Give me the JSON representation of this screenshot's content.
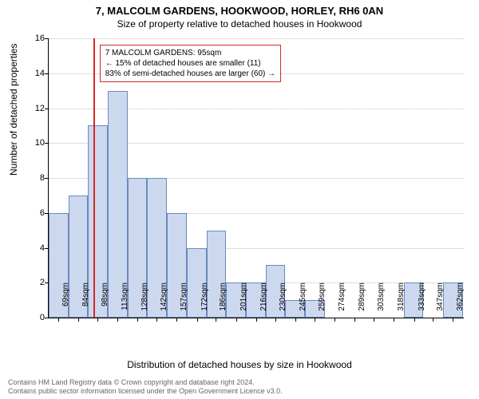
{
  "title": "7, MALCOLM GARDENS, HOOKWOOD, HORLEY, RH6 0AN",
  "subtitle": "Size of property relative to detached houses in Hookwood",
  "y_axis_label": "Number of detached properties",
  "x_axis_label": "Distribution of detached houses by size in Hookwood",
  "footer_line1": "Contains HM Land Registry data © Crown copyright and database right 2024.",
  "footer_line2": "Contains public sector information licensed under the Open Government Licence v3.0.",
  "chart": {
    "type": "histogram",
    "ylim": [
      0,
      16
    ],
    "ytick_step": 2,
    "yticks": [
      0,
      2,
      4,
      6,
      8,
      10,
      12,
      14,
      16
    ],
    "bar_fill": "#ccd8ed",
    "bar_stroke": "#6a8abf",
    "grid_color": "#bdbdbd",
    "marker_color": "#d62728",
    "marker_position_sqm": 95,
    "xrange": [
      62,
      370
    ],
    "x_ticks": [
      69,
      84,
      98,
      113,
      128,
      142,
      157,
      172,
      186,
      201,
      216,
      230,
      245,
      259,
      274,
      289,
      303,
      318,
      333,
      347,
      362
    ],
    "x_tick_suffix": "sqm",
    "bars": [
      {
        "x0": 62,
        "x1": 76.6,
        "value": 6
      },
      {
        "x0": 76.6,
        "x1": 91.2,
        "value": 7
      },
      {
        "x0": 91.2,
        "x1": 105.9,
        "value": 11
      },
      {
        "x0": 105.9,
        "x1": 120.5,
        "value": 13
      },
      {
        "x0": 120.5,
        "x1": 135.1,
        "value": 8
      },
      {
        "x0": 135.1,
        "x1": 149.8,
        "value": 8
      },
      {
        "x0": 149.8,
        "x1": 164.4,
        "value": 6
      },
      {
        "x0": 164.4,
        "x1": 179.0,
        "value": 4
      },
      {
        "x0": 179.0,
        "x1": 193.7,
        "value": 5
      },
      {
        "x0": 193.7,
        "x1": 208.3,
        "value": 2
      },
      {
        "x0": 208.3,
        "x1": 222.9,
        "value": 2
      },
      {
        "x0": 222.9,
        "x1": 237.6,
        "value": 3
      },
      {
        "x0": 237.6,
        "x1": 252.2,
        "value": 1
      },
      {
        "x0": 252.2,
        "x1": 266.8,
        "value": 1
      },
      {
        "x0": 266.8,
        "x1": 281.5,
        "value": 0
      },
      {
        "x0": 281.5,
        "x1": 296.1,
        "value": 0
      },
      {
        "x0": 296.1,
        "x1": 310.7,
        "value": 0
      },
      {
        "x0": 310.7,
        "x1": 325.4,
        "value": 0
      },
      {
        "x0": 325.4,
        "x1": 340.0,
        "value": 2
      },
      {
        "x0": 340.0,
        "x1": 354.6,
        "value": 0
      },
      {
        "x0": 354.6,
        "x1": 369.3,
        "value": 2
      }
    ]
  },
  "annotation": {
    "line1": "7 MALCOLM GARDENS: 95sqm",
    "line2": "← 15% of detached houses are smaller (11)",
    "line3": "83% of semi-detached houses are larger (60) →",
    "border_color": "#d62728",
    "bg": "#ffffff",
    "fontsize": 10
  }
}
